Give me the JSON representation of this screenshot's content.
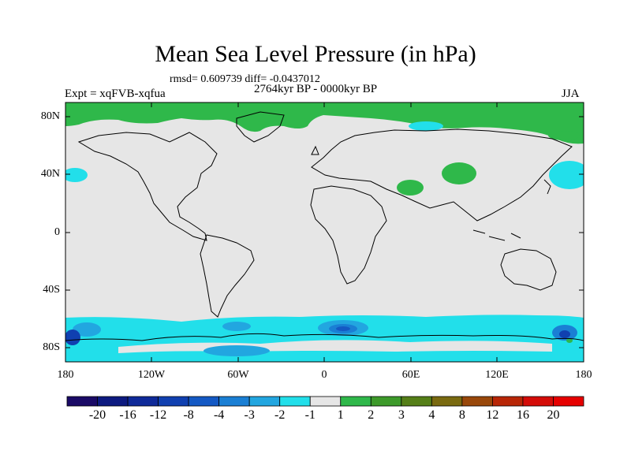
{
  "title": "Mean Sea Level Pressure (in hPa)",
  "stats_line": "rmsd= 0.609739 diff= -0.0437012",
  "experiment": "Expt = xqFVB-xqfua",
  "period": "2764kyr BP - 0000kyr BP",
  "season": "JJA",
  "lat_labels": [
    "80N",
    "40N",
    "0",
    "40S",
    "80S"
  ],
  "lon_labels": [
    "180",
    "120W",
    "60W",
    "0",
    "60E",
    "120E",
    "180"
  ],
  "colorbar": {
    "labels": [
      "-20",
      "-16",
      "-12",
      "-8",
      "-4",
      "-3",
      "-2",
      "-1",
      "1",
      "2",
      "3",
      "4",
      "8",
      "12",
      "16",
      "20"
    ],
    "colors": [
      "#1a0a66",
      "#0d1a80",
      "#0f2a99",
      "#1040b0",
      "#1459c4",
      "#1a7fd4",
      "#22a6e0",
      "#22dfea",
      "#e6e6e6",
      "#2fb84a",
      "#3d9a2a",
      "#557f18",
      "#7a6a10",
      "#99480a",
      "#b82606",
      "#d40c08",
      "#e60000"
    ]
  },
  "chart_data": {
    "type": "heatmap",
    "variable": "Mean Sea Level Pressure difference (hPa)",
    "x_range": [
      -180,
      180
    ],
    "y_range": [
      -90,
      90
    ],
    "levels": [
      -20,
      -16,
      -12,
      -8,
      -4,
      -3,
      -2,
      -1,
      1,
      2,
      3,
      4,
      8,
      12,
      16,
      20
    ]
  }
}
